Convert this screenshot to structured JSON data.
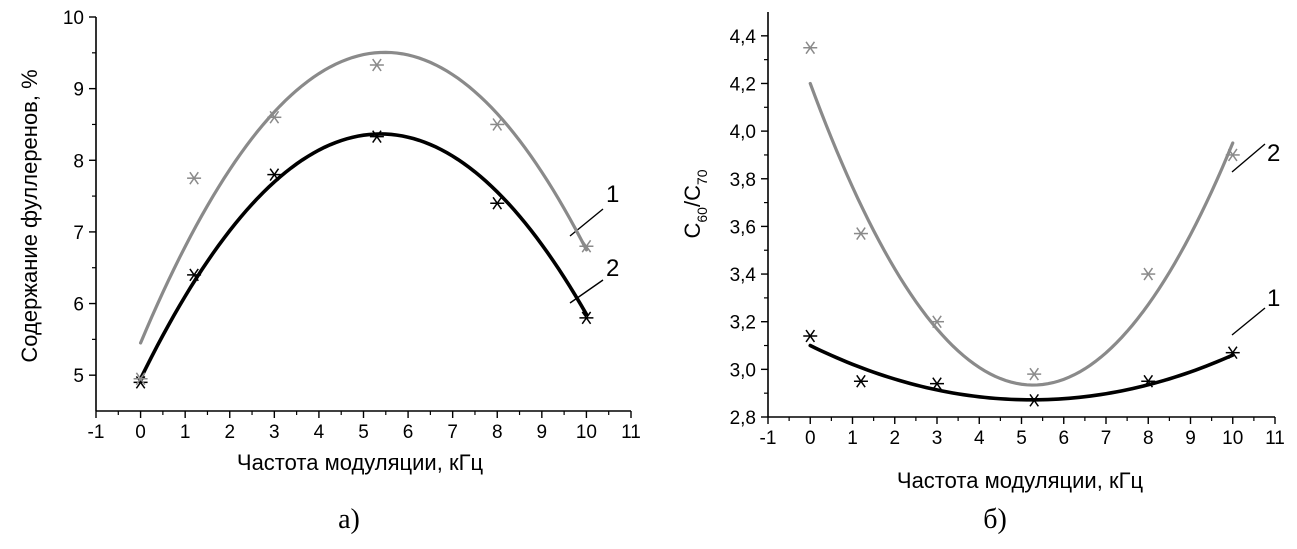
{
  "chart_data": [
    {
      "type": "scatter",
      "panel_caption": "а)",
      "xlabel": "Частота модуляции, кГц",
      "ylabel": "Содержание фуллеренов, %",
      "xlim": [
        -1,
        11
      ],
      "ylim": [
        4.5,
        10
      ],
      "xticks": [
        -1,
        0,
        1,
        2,
        3,
        4,
        5,
        6,
        7,
        8,
        9,
        10,
        11
      ],
      "xtick_labels": [
        "-1",
        "0",
        "1",
        "2",
        "3",
        "4",
        "5",
        "6",
        "7",
        "8",
        "9",
        "10",
        "11"
      ],
      "yticks": [
        5,
        6,
        7,
        8,
        9,
        10
      ],
      "ytick_labels": [
        "5",
        "6",
        "7",
        "8",
        "9",
        "10"
      ],
      "series": [
        {
          "label": "1",
          "color": "#000000",
          "x": [
            0,
            1.2,
            3,
            5.3,
            8,
            10
          ],
          "y": [
            4.9,
            6.4,
            7.8,
            8.33,
            7.4,
            5.8
          ],
          "fit": {
            "x_start": 0,
            "x_end": 10,
            "coef": [
              4.95,
              1.27,
              -0.118
            ]
          }
        },
        {
          "label": "2",
          "color": "#8a8a8a",
          "x": [
            0,
            1.2,
            3,
            5.3,
            8,
            10
          ],
          "y": [
            4.95,
            7.75,
            8.6,
            9.33,
            8.5,
            6.8
          ],
          "fit": {
            "x_start": 0,
            "x_end": 10,
            "coef": [
              5.45,
              1.48,
              -0.135
            ]
          }
        }
      ]
    },
    {
      "type": "scatter",
      "panel_caption": "б)",
      "xlabel": "Частота модуляции, кГц",
      "ylabel_main": "C",
      "ylabel_sub1": "60",
      "ylabel_mid": "/C",
      "ylabel_sub2": "70",
      "xlim": [
        -1,
        11
      ],
      "ylim": [
        2.8,
        4.5
      ],
      "xticks": [
        -1,
        0,
        1,
        2,
        3,
        4,
        5,
        6,
        7,
        8,
        9,
        10,
        11
      ],
      "xtick_labels": [
        "-1",
        "0",
        "1",
        "2",
        "3",
        "4",
        "5",
        "6",
        "7",
        "8",
        "9",
        "10",
        "11"
      ],
      "yticks": [
        2.8,
        3.0,
        3.2,
        3.4,
        3.6,
        3.8,
        4.0,
        4.2,
        4.4
      ],
      "ytick_labels": [
        "2,8",
        "3,0",
        "3,2",
        "3,4",
        "3,6",
        "3,8",
        "4,0",
        "4,2",
        "4,4"
      ],
      "series": [
        {
          "label": "1",
          "color": "#000000",
          "x": [
            0,
            1.2,
            3,
            5.3,
            8,
            10
          ],
          "y": [
            3.14,
            2.95,
            2.94,
            2.87,
            2.95,
            3.07
          ],
          "fit": {
            "x_start": 0,
            "x_end": 10,
            "coef": [
              3.1,
              -0.087,
              0.0083
            ]
          }
        },
        {
          "label": "2",
          "color": "#8a8a8a",
          "x": [
            0,
            1.2,
            3,
            5.3,
            8,
            10
          ],
          "y": [
            4.35,
            3.57,
            3.2,
            2.98,
            3.4,
            3.9
          ],
          "fit": {
            "x_start": 0,
            "x_end": 10,
            "coef": [
              4.2,
              -0.48,
              0.0455
            ]
          }
        }
      ]
    }
  ]
}
